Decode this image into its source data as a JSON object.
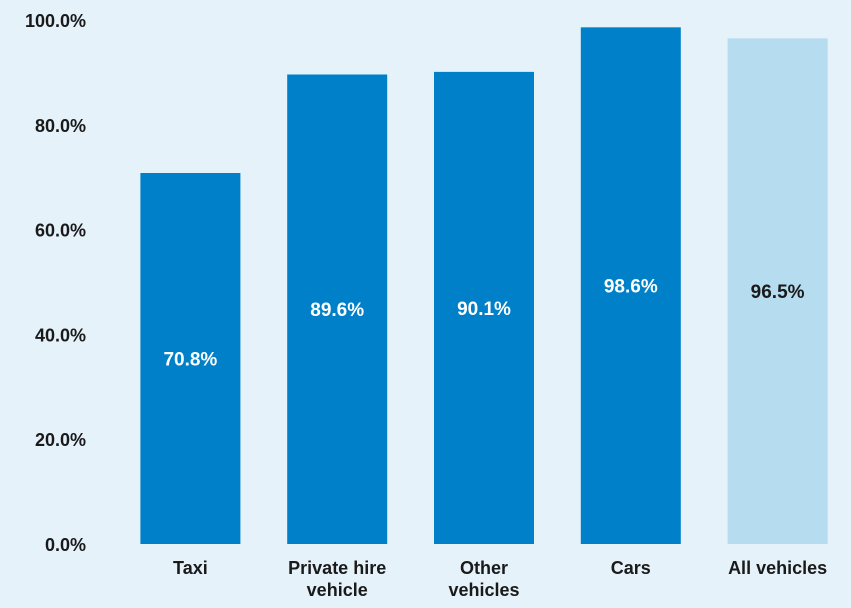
{
  "chart_data": {
    "type": "bar",
    "categories": [
      [
        "Taxi"
      ],
      [
        "Private hire",
        "vehicle"
      ],
      [
        "Other",
        "vehicles"
      ],
      [
        "Cars"
      ],
      [
        "All vehicles"
      ]
    ],
    "values": [
      70.8,
      89.6,
      90.1,
      98.6,
      96.5
    ],
    "data_labels": [
      "70.8%",
      "89.6%",
      "90.1%",
      "98.6%",
      "96.5%"
    ],
    "yticks": [
      "0.0%",
      "20.0%",
      "40.0%",
      "60.0%",
      "80.0%",
      "100.0%"
    ],
    "ylim": [
      0,
      100
    ],
    "title": "",
    "xlabel": "",
    "ylabel": "",
    "grid": false,
    "legend": "none",
    "colors": {
      "bar": "#0080c8",
      "highlight_bar": "#b6dcf0",
      "label_on_dark": "#ffffff",
      "label_on_light": "#1a1a1a",
      "background": "#e5f2fa"
    },
    "highlight_index": 4
  }
}
